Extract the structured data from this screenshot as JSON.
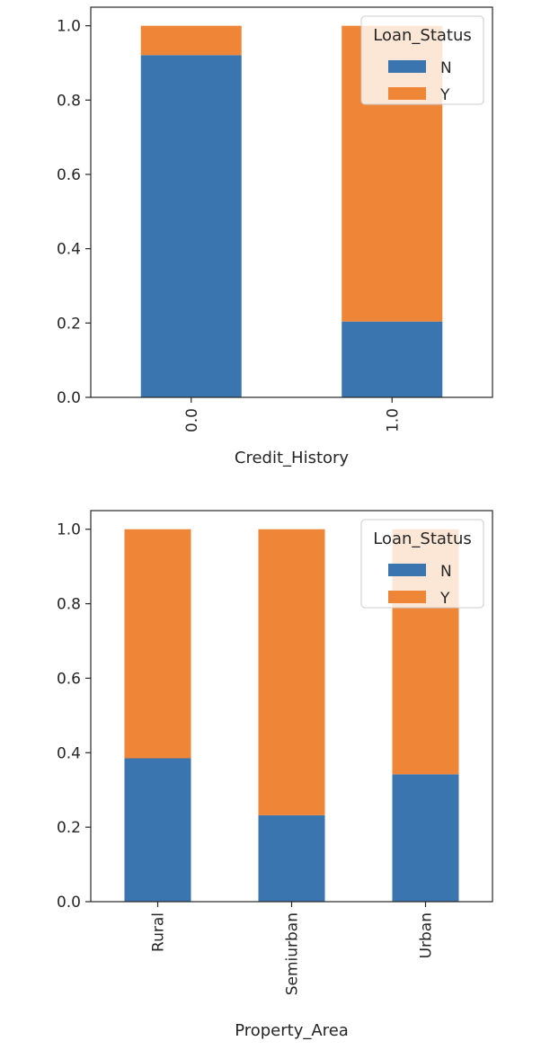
{
  "colors": {
    "N": "#3a75af",
    "Y": "#ef8536",
    "axis": "#262626"
  },
  "chart_data": [
    {
      "type": "bar",
      "stacked": true,
      "categories": [
        "0.0",
        "1.0"
      ],
      "series": [
        {
          "name": "N",
          "values": [
            0.921,
            0.204
          ]
        },
        {
          "name": "Y",
          "values": [
            0.079,
            0.796
          ]
        }
      ],
      "xlabel": "Credit_History",
      "ylabel": "",
      "ylim": [
        0,
        1.05
      ],
      "yticks": [
        "0.0",
        "0.2",
        "0.4",
        "0.6",
        "0.8",
        "1.0"
      ],
      "legend": {
        "title": "Loan_Status",
        "placement": "top-right",
        "entries": [
          "N",
          "Y"
        ]
      },
      "grid": false
    },
    {
      "type": "bar",
      "stacked": true,
      "categories": [
        "Rural",
        "Semiurban",
        "Urban"
      ],
      "series": [
        {
          "name": "N",
          "values": [
            0.385,
            0.232,
            0.342
          ]
        },
        {
          "name": "Y",
          "values": [
            0.615,
            0.768,
            0.658
          ]
        }
      ],
      "xlabel": "Property_Area",
      "ylabel": "",
      "ylim": [
        0,
        1.05
      ],
      "yticks": [
        "0.0",
        "0.2",
        "0.4",
        "0.6",
        "0.8",
        "1.0"
      ],
      "legend": {
        "title": "Loan_Status",
        "placement": "top-right",
        "entries": [
          "N",
          "Y"
        ]
      },
      "grid": false
    }
  ]
}
